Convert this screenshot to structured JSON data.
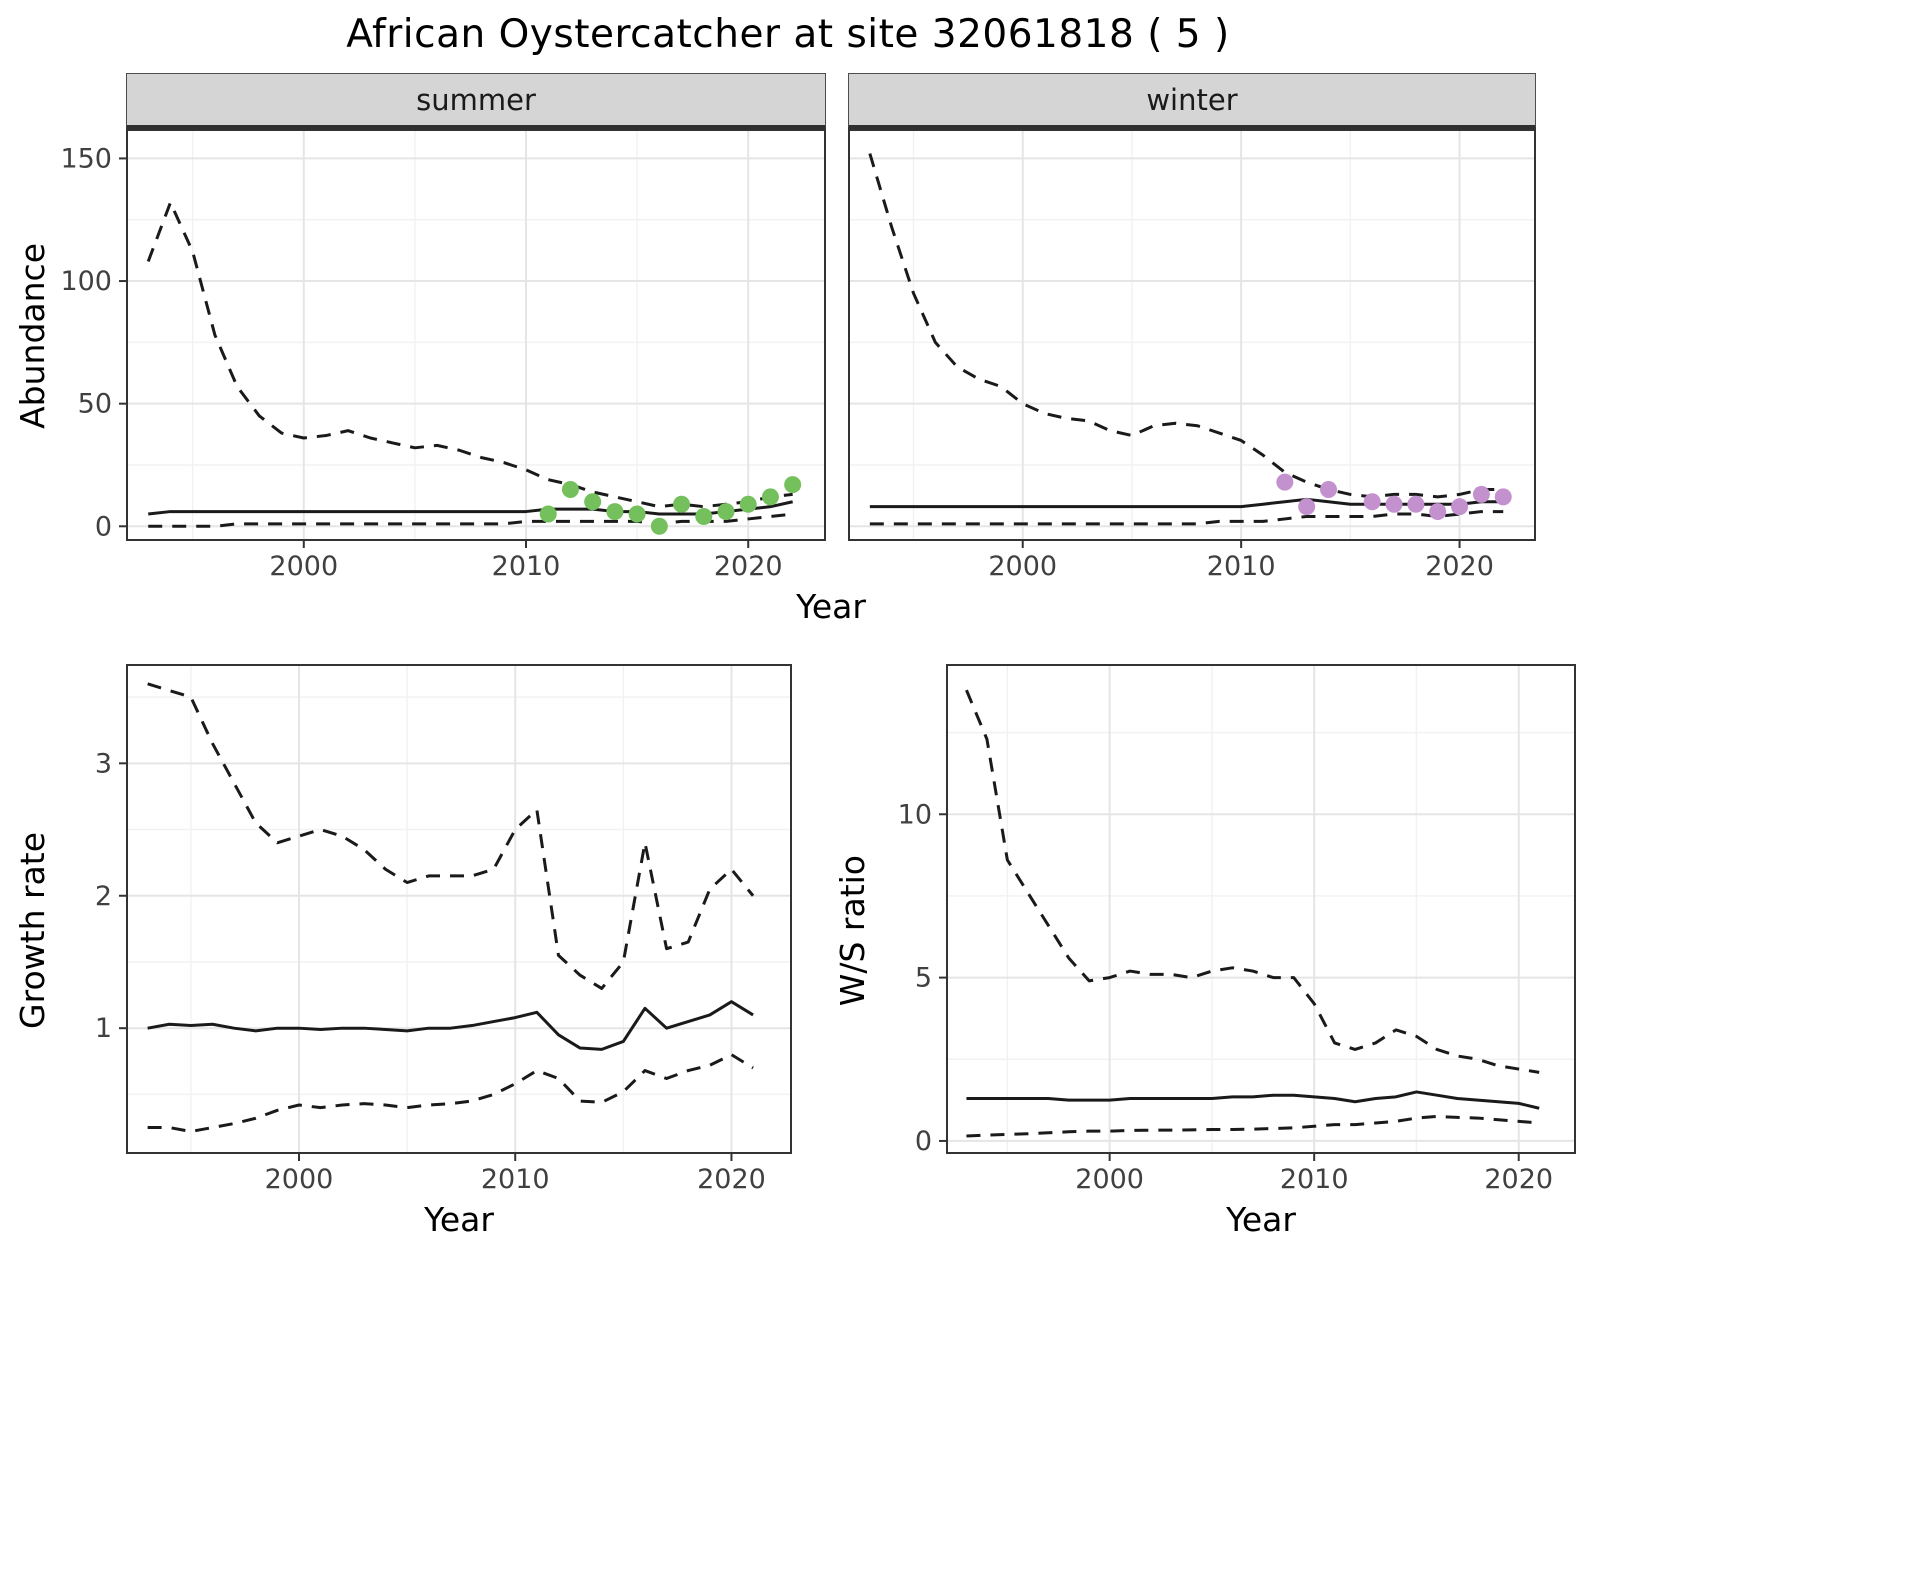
{
  "title": "African Oystercatcher at site 32061818 ( 5 )",
  "style": {
    "line_color": "#1a1a1a",
    "summer_point_color": "#74c05c",
    "winter_point_color": "#c392ce",
    "strip_background": "#d5d5d5",
    "major_grid": "#e5e5e5",
    "minor_grid": "#f2f2f2"
  },
  "chart_data": [
    {
      "id": "abundance-summer",
      "type": "line",
      "facet_label": "summer",
      "ylabel": "Abundance",
      "xlabel": "Year",
      "xlim": [
        1992,
        2023.5
      ],
      "ylim": [
        -6,
        162
      ],
      "xticks": [
        2000,
        2010,
        2020
      ],
      "yticks": [
        0,
        50,
        100,
        150
      ],
      "show_y_tick_labels": true,
      "grid": true,
      "legend": "none",
      "series": [
        {
          "name": "upper-ci",
          "style": "dashed",
          "x": [
            1993,
            1994,
            1995,
            1996,
            1997,
            1998,
            1999,
            2000,
            2001,
            2002,
            2003,
            2004,
            2005,
            2006,
            2007,
            2008,
            2009,
            2010,
            2011,
            2012,
            2013,
            2014,
            2015,
            2016,
            2017,
            2018,
            2019,
            2020,
            2021,
            2022
          ],
          "y": [
            108,
            132,
            112,
            78,
            57,
            45,
            38,
            36,
            37,
            39,
            36,
            34,
            32,
            33,
            31,
            28,
            26,
            23,
            19,
            17,
            14,
            12,
            10,
            8,
            9,
            8,
            9,
            10,
            12,
            13
          ]
        },
        {
          "name": "estimate",
          "style": "solid",
          "x": [
            1993,
            1994,
            1995,
            1996,
            1997,
            1998,
            1999,
            2000,
            2001,
            2002,
            2003,
            2004,
            2005,
            2006,
            2007,
            2008,
            2009,
            2010,
            2011,
            2012,
            2013,
            2014,
            2015,
            2016,
            2017,
            2018,
            2019,
            2020,
            2021,
            2022
          ],
          "y": [
            5,
            6,
            6,
            6,
            6,
            6,
            6,
            6,
            6,
            6,
            6,
            6,
            6,
            6,
            6,
            6,
            6,
            6,
            7,
            7,
            7,
            6,
            6,
            5,
            5,
            5,
            6,
            7,
            8,
            10
          ]
        },
        {
          "name": "lower-ci",
          "style": "dashed",
          "x": [
            1993,
            1994,
            1995,
            1996,
            1997,
            1998,
            1999,
            2000,
            2001,
            2002,
            2003,
            2004,
            2005,
            2006,
            2007,
            2008,
            2009,
            2010,
            2011,
            2012,
            2013,
            2014,
            2015,
            2016,
            2017,
            2018,
            2019,
            2020,
            2021,
            2022
          ],
          "y": [
            0,
            0,
            0,
            0,
            1,
            1,
            1,
            1,
            1,
            1,
            1,
            1,
            1,
            1,
            1,
            1,
            1,
            2,
            2,
            2,
            2,
            2,
            2,
            1,
            2,
            2,
            2,
            3,
            4,
            5
          ]
        },
        {
          "name": "observed-counts",
          "style": "points",
          "color": "#74c05c",
          "x": [
            2011,
            2012,
            2013,
            2014,
            2015,
            2016,
            2017,
            2018,
            2019,
            2020,
            2021,
            2022
          ],
          "y": [
            5,
            15,
            10,
            6,
            5,
            0,
            9,
            4,
            6,
            9,
            12,
            17
          ]
        }
      ]
    },
    {
      "id": "abundance-winter",
      "type": "line",
      "facet_label": "winter",
      "ylabel": "Abundance",
      "xlabel": "Year",
      "xlim": [
        1992,
        2023.5
      ],
      "ylim": [
        -6,
        162
      ],
      "xticks": [
        2000,
        2010,
        2020
      ],
      "yticks": [
        0,
        50,
        100,
        150
      ],
      "show_y_tick_labels": false,
      "grid": true,
      "legend": "none",
      "series": [
        {
          "name": "upper-ci",
          "style": "dashed",
          "x": [
            1993,
            1994,
            1995,
            1996,
            1997,
            1998,
            1999,
            2000,
            2001,
            2002,
            2003,
            2004,
            2005,
            2006,
            2007,
            2008,
            2009,
            2010,
            2011,
            2012,
            2013,
            2014,
            2015,
            2016,
            2017,
            2018,
            2019,
            2020,
            2021,
            2022
          ],
          "y": [
            152,
            122,
            95,
            75,
            65,
            60,
            57,
            50,
            46,
            44,
            43,
            39,
            37,
            41,
            42,
            41,
            38,
            35,
            29,
            22,
            18,
            15,
            13,
            12,
            13,
            13,
            12,
            13,
            15,
            15
          ]
        },
        {
          "name": "estimate",
          "style": "solid",
          "x": [
            1993,
            1994,
            1995,
            1996,
            1997,
            1998,
            1999,
            2000,
            2001,
            2002,
            2003,
            2004,
            2005,
            2006,
            2007,
            2008,
            2009,
            2010,
            2011,
            2012,
            2013,
            2014,
            2015,
            2016,
            2017,
            2018,
            2019,
            2020,
            2021,
            2022
          ],
          "y": [
            8,
            8,
            8,
            8,
            8,
            8,
            8,
            8,
            8,
            8,
            8,
            8,
            8,
            8,
            8,
            8,
            8,
            8,
            9,
            10,
            11,
            10,
            9,
            9,
            9,
            9,
            9,
            9,
            10,
            10
          ]
        },
        {
          "name": "lower-ci",
          "style": "dashed",
          "x": [
            1993,
            1994,
            1995,
            1996,
            1997,
            1998,
            1999,
            2000,
            2001,
            2002,
            2003,
            2004,
            2005,
            2006,
            2007,
            2008,
            2009,
            2010,
            2011,
            2012,
            2013,
            2014,
            2015,
            2016,
            2017,
            2018,
            2019,
            2020,
            2021,
            2022
          ],
          "y": [
            1,
            1,
            1,
            1,
            1,
            1,
            1,
            1,
            1,
            1,
            1,
            1,
            1,
            1,
            1,
            1,
            2,
            2,
            2,
            3,
            4,
            4,
            4,
            4,
            5,
            5,
            4,
            5,
            6,
            6
          ]
        },
        {
          "name": "observed-counts",
          "style": "points",
          "color": "#c392ce",
          "x": [
            2012,
            2013,
            2014,
            2016,
            2017,
            2018,
            2019,
            2020,
            2021,
            2022
          ],
          "y": [
            18,
            8,
            15,
            10,
            9,
            9,
            6,
            8,
            13,
            12
          ]
        }
      ]
    },
    {
      "id": "growth-rate",
      "type": "line",
      "facet_label": "",
      "ylabel": "Growth rate",
      "xlabel": "Year",
      "xlim": [
        1992,
        2022.8
      ],
      "ylim": [
        0.05,
        3.75
      ],
      "xticks": [
        2000,
        2010,
        2020
      ],
      "yticks": [
        1,
        2,
        3
      ],
      "show_y_tick_labels": true,
      "grid": true,
      "legend": "none",
      "series": [
        {
          "name": "upper-ci",
          "style": "dashed",
          "x": [
            1993,
            1994,
            1995,
            1996,
            1997,
            1998,
            1999,
            2000,
            2001,
            2002,
            2003,
            2004,
            2005,
            2006,
            2007,
            2008,
            2009,
            2010,
            2011,
            2012,
            2013,
            2014,
            2015,
            2016,
            2017,
            2018,
            2019,
            2020,
            2021
          ],
          "y": [
            3.6,
            3.55,
            3.5,
            3.15,
            2.85,
            2.55,
            2.4,
            2.45,
            2.5,
            2.45,
            2.35,
            2.2,
            2.1,
            2.15,
            2.15,
            2.15,
            2.2,
            2.5,
            2.65,
            1.55,
            1.4,
            1.3,
            1.5,
            2.4,
            1.6,
            1.65,
            2.05,
            2.2,
            2.0
          ]
        },
        {
          "name": "estimate",
          "style": "solid",
          "x": [
            1993,
            1994,
            1995,
            1996,
            1997,
            1998,
            1999,
            2000,
            2001,
            2002,
            2003,
            2004,
            2005,
            2006,
            2007,
            2008,
            2009,
            2010,
            2011,
            2012,
            2013,
            2014,
            2015,
            2016,
            2017,
            2018,
            2019,
            2020,
            2021
          ],
          "y": [
            1.0,
            1.03,
            1.02,
            1.03,
            1.0,
            0.98,
            1.0,
            1.0,
            0.99,
            1.0,
            1.0,
            0.99,
            0.98,
            1.0,
            1.0,
            1.02,
            1.05,
            1.08,
            1.12,
            0.95,
            0.85,
            0.84,
            0.9,
            1.15,
            1.0,
            1.05,
            1.1,
            1.2,
            1.1
          ]
        },
        {
          "name": "lower-ci",
          "style": "dashed",
          "x": [
            1993,
            1994,
            1995,
            1996,
            1997,
            1998,
            1999,
            2000,
            2001,
            2002,
            2003,
            2004,
            2005,
            2006,
            2007,
            2008,
            2009,
            2010,
            2011,
            2012,
            2013,
            2014,
            2015,
            2016,
            2017,
            2018,
            2019,
            2020,
            2021
          ],
          "y": [
            0.25,
            0.25,
            0.22,
            0.25,
            0.28,
            0.32,
            0.38,
            0.42,
            0.4,
            0.42,
            0.43,
            0.42,
            0.4,
            0.42,
            0.43,
            0.45,
            0.5,
            0.58,
            0.68,
            0.62,
            0.45,
            0.44,
            0.52,
            0.68,
            0.62,
            0.68,
            0.72,
            0.8,
            0.7
          ]
        }
      ]
    },
    {
      "id": "ws-ratio",
      "type": "line",
      "facet_label": "",
      "ylabel": "W/S ratio",
      "xlabel": "Year",
      "xlim": [
        1992,
        2022.8
      ],
      "ylim": [
        -0.4,
        14.6
      ],
      "xticks": [
        2000,
        2010,
        2020
      ],
      "yticks": [
        0,
        5,
        10
      ],
      "show_y_tick_labels": true,
      "grid": true,
      "legend": "none",
      "series": [
        {
          "name": "upper-ci",
          "style": "dashed",
          "x": [
            1993,
            1994,
            1995,
            1996,
            1997,
            1998,
            1999,
            2000,
            2001,
            2002,
            2003,
            2004,
            2005,
            2006,
            2007,
            2008,
            2009,
            2010,
            2011,
            2012,
            2013,
            2014,
            2015,
            2016,
            2017,
            2018,
            2019,
            2020,
            2021
          ],
          "y": [
            13.8,
            12.3,
            8.6,
            7.6,
            6.6,
            5.6,
            4.9,
            5.0,
            5.2,
            5.1,
            5.1,
            5.0,
            5.2,
            5.3,
            5.2,
            5.0,
            5.0,
            4.2,
            3.0,
            2.8,
            3.0,
            3.4,
            3.2,
            2.8,
            2.6,
            2.5,
            2.3,
            2.2,
            2.1
          ]
        },
        {
          "name": "estimate",
          "style": "solid",
          "x": [
            1993,
            1994,
            1995,
            1996,
            1997,
            1998,
            1999,
            2000,
            2001,
            2002,
            2003,
            2004,
            2005,
            2006,
            2007,
            2008,
            2009,
            2010,
            2011,
            2012,
            2013,
            2014,
            2015,
            2016,
            2017,
            2018,
            2019,
            2020,
            2021
          ],
          "y": [
            1.3,
            1.3,
            1.3,
            1.3,
            1.3,
            1.25,
            1.25,
            1.25,
            1.3,
            1.3,
            1.3,
            1.3,
            1.3,
            1.35,
            1.35,
            1.4,
            1.4,
            1.35,
            1.3,
            1.2,
            1.3,
            1.35,
            1.5,
            1.4,
            1.3,
            1.25,
            1.2,
            1.15,
            1.0
          ]
        },
        {
          "name": "lower-ci",
          "style": "dashed",
          "x": [
            1993,
            1994,
            1995,
            1996,
            1997,
            1998,
            1999,
            2000,
            2001,
            2002,
            2003,
            2004,
            2005,
            2006,
            2007,
            2008,
            2009,
            2010,
            2011,
            2012,
            2013,
            2014,
            2015,
            2016,
            2017,
            2018,
            2019,
            2020,
            2021
          ],
          "y": [
            0.15,
            0.18,
            0.2,
            0.22,
            0.25,
            0.28,
            0.3,
            0.3,
            0.32,
            0.33,
            0.33,
            0.34,
            0.35,
            0.35,
            0.36,
            0.38,
            0.4,
            0.45,
            0.5,
            0.5,
            0.55,
            0.6,
            0.7,
            0.75,
            0.72,
            0.7,
            0.65,
            0.6,
            0.55
          ]
        }
      ]
    }
  ]
}
